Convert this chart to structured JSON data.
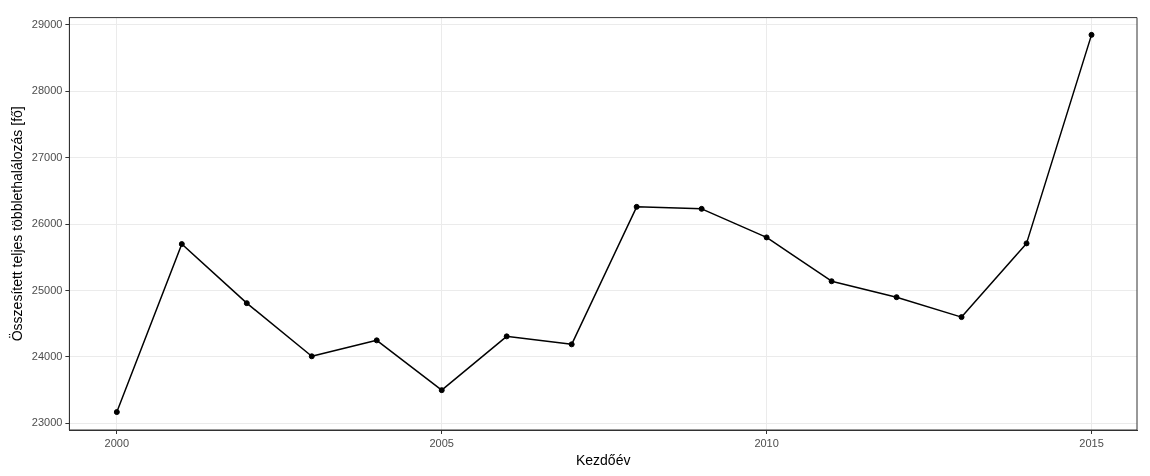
{
  "chart_data": {
    "type": "line",
    "xlabel": "Kezdőév",
    "ylabel": "Összesített teljes többlethalálozás [fő]",
    "x": [
      2000,
      2001,
      2002,
      2003,
      2004,
      2005,
      2006,
      2007,
      2008,
      2009,
      2010,
      2011,
      2012,
      2013,
      2014,
      2015
    ],
    "series": [
      {
        "color": "#000000",
        "values": [
          23170,
          25700,
          24810,
          24010,
          24250,
          23500,
          24310,
          24190,
          26260,
          26230,
          25800,
          25140,
          24900,
          24600,
          25710,
          28850
        ]
      }
    ],
    "xlim": [
      1999.27,
      2015.7
    ],
    "xticks": [
      2000,
      2005,
      2010,
      2015
    ],
    "ylim": [
      22900,
      29110
    ],
    "yticks": [
      23000,
      24000,
      25000,
      26000,
      27000,
      28000,
      29000
    ],
    "grid": true,
    "legend": false,
    "marker": "circle",
    "line_style": "solid"
  }
}
